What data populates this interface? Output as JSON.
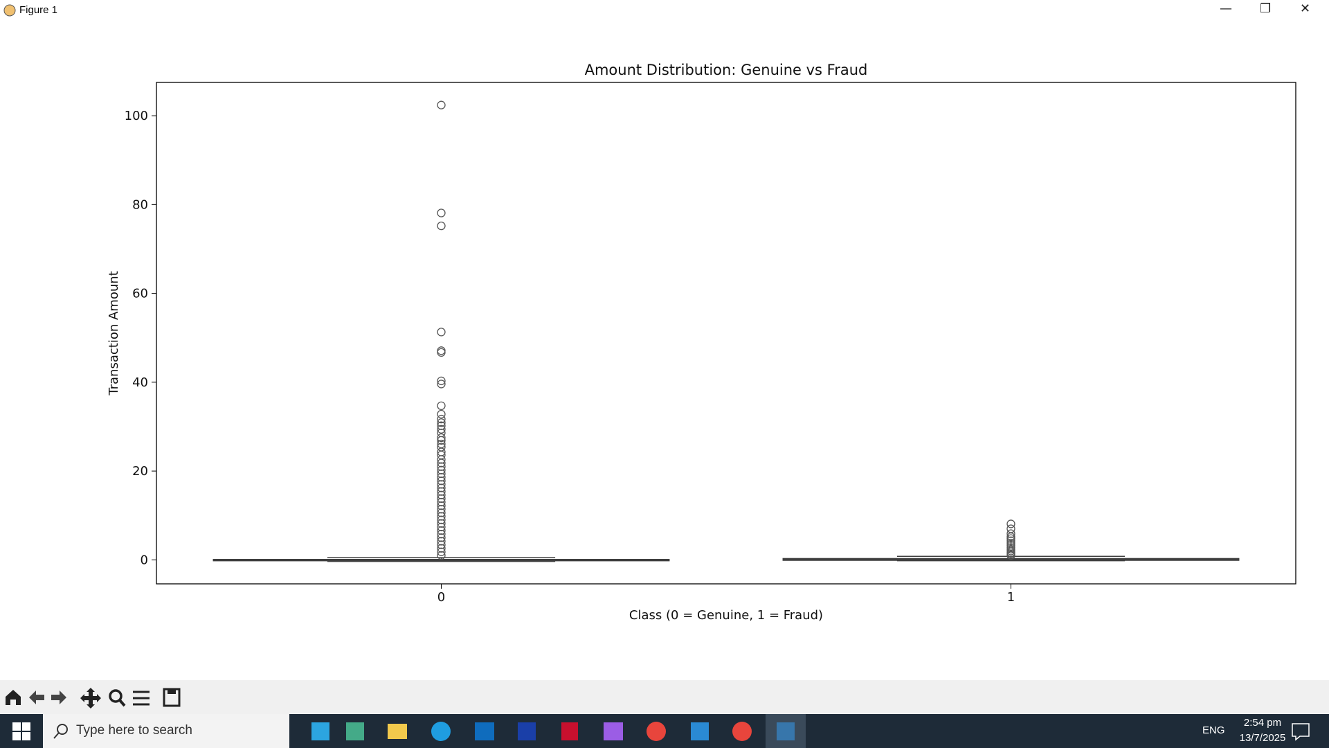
{
  "window": {
    "title": "Figure 1"
  },
  "taskbar": {
    "search": "Type here to search",
    "language": "ENG",
    "time": "2:54 pm",
    "date": "13/7/2025"
  },
  "chart_data": {
    "type": "box",
    "title": "Amount Distribution: Genuine vs Fraud",
    "x_label": "Class (0 = Genuine, 1 = Fraud)",
    "y_label": "Transaction Amount",
    "categories": [
      "0",
      "1"
    ],
    "series": [
      {
        "color": "#3d5f87",
        "q1": -0.2,
        "median": 0,
        "q3": 0.1,
        "whislo": -0.35,
        "whishi": 0.5,
        "fliers": [
          102.4,
          78.1,
          75.2,
          51.3,
          47.1,
          46.7,
          40.3,
          39.6,
          34.7,
          32.8,
          31.7,
          30.9,
          30.2,
          29.4,
          28.6,
          27.5,
          26.9,
          26.1,
          25.4,
          24.3,
          23.6,
          22.6,
          21.8,
          21.0,
          20.2,
          19.4,
          18.6,
          17.8,
          17.0,
          16.2,
          15.4,
          14.6,
          13.8,
          13.0,
          12.2,
          11.4,
          10.6,
          9.8,
          9.0,
          8.2,
          7.4,
          6.6,
          5.8,
          5.0,
          4.2,
          3.4,
          2.6,
          1.8,
          1.0
        ]
      },
      {
        "color": "#e3dcb0",
        "q1": -0.1,
        "median": 0.1,
        "q3": 0.3,
        "whislo": -0.2,
        "whishi": 0.8,
        "fliers": [
          8.1,
          7.0,
          5.9,
          5.2,
          4.8,
          4.3,
          3.8,
          3.3,
          2.8,
          2.4,
          2.0,
          1.6,
          1.3,
          1.0
        ]
      }
    ],
    "ylim": [
      -5.4,
      107.5
    ],
    "yticks": [
      0,
      20,
      40,
      60,
      80,
      100
    ]
  }
}
